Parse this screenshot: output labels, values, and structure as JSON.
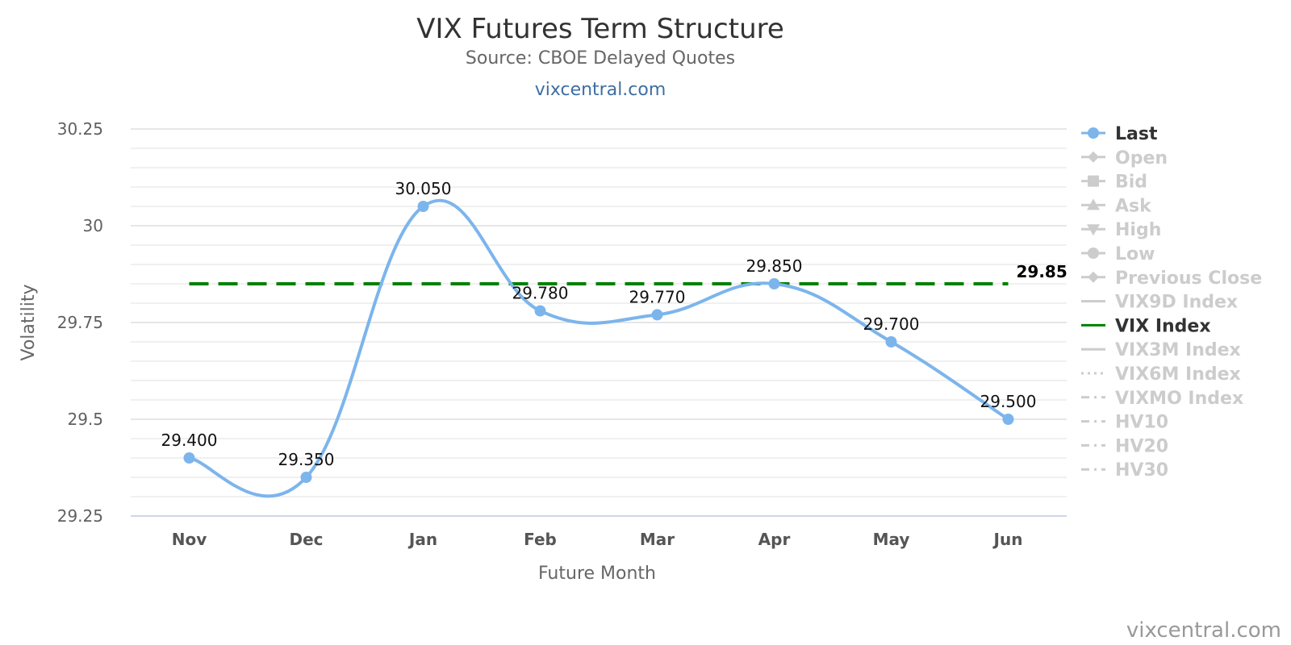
{
  "chart_data": {
    "type": "line",
    "title": "VIX Futures Term Structure",
    "subtitle": "Source: CBOE Delayed Quotes",
    "link_text": "vixcentral.com",
    "credit": "vixcentral.com",
    "xlabel": "Future Month",
    "ylabel": "Volatility",
    "ylim": [
      29.25,
      30.25
    ],
    "yticks": [
      {
        "value": 29.25,
        "label": "29.25"
      },
      {
        "value": 29.5,
        "label": "29.5"
      },
      {
        "value": 29.75,
        "label": "29.75"
      },
      {
        "value": 30,
        "label": "30"
      },
      {
        "value": 30.25,
        "label": "30.25"
      }
    ],
    "grid": true,
    "legend_position": "right",
    "categories": [
      "Nov",
      "Dec",
      "Jan",
      "Feb",
      "Mar",
      "Apr",
      "May",
      "Jun"
    ],
    "series": [
      {
        "name": "Last",
        "values": [
          29.4,
          29.35,
          30.05,
          29.78,
          29.77,
          29.85,
          29.7,
          29.5
        ],
        "labels": [
          "29.400",
          "29.350",
          "30.050",
          "29.780",
          "29.770",
          "29.850",
          "29.700",
          "29.500"
        ],
        "color": "#7cb5ec"
      },
      {
        "name": "VIX Index",
        "value": 29.85,
        "label": "29.85",
        "color": "#008000",
        "style": "dashed"
      }
    ],
    "legend": [
      {
        "name": "Last",
        "active": true,
        "symbol": "circle",
        "color": "#7cb5ec"
      },
      {
        "name": "Open",
        "active": false,
        "symbol": "diamond"
      },
      {
        "name": "Bid",
        "active": false,
        "symbol": "square"
      },
      {
        "name": "Ask",
        "active": false,
        "symbol": "triangle"
      },
      {
        "name": "High",
        "active": false,
        "symbol": "triangle-down"
      },
      {
        "name": "Low",
        "active": false,
        "symbol": "circle"
      },
      {
        "name": "Previous Close",
        "active": false,
        "symbol": "diamond"
      },
      {
        "name": "VIX9D Index",
        "active": false,
        "symbol": "line"
      },
      {
        "name": "VIX Index",
        "active": true,
        "symbol": "line",
        "color": "#008000"
      },
      {
        "name": "VIX3M Index",
        "active": false,
        "symbol": "line"
      },
      {
        "name": "VIX6M Index",
        "active": false,
        "symbol": "dotted"
      },
      {
        "name": "VIXMO Index",
        "active": false,
        "symbol": "dashdot"
      },
      {
        "name": "HV10",
        "active": false,
        "symbol": "dashdot"
      },
      {
        "name": "HV20",
        "active": false,
        "symbol": "dashdot"
      },
      {
        "name": "HV30",
        "active": false,
        "symbol": "dashdot"
      }
    ],
    "colors": {
      "inactive": "#cccccc",
      "active_text": "#333333",
      "grid": "#e6e6e6",
      "axis": "#ccd6eb"
    }
  }
}
